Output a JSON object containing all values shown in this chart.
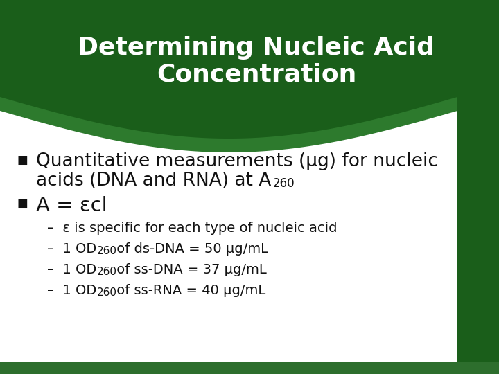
{
  "title_line1": "Determining Nucleic Acid",
  "title_line2": "Concentration",
  "title_color": "#ffffff",
  "title_fontsize": 26,
  "bg_color": "#ffffff",
  "header_green_dark": "#1a5e1a",
  "header_green_mid": "#2d7a2d",
  "header_green_light": "#3a9a3a",
  "bottom_strip_color": "#2d6e2d",
  "bullet1_line1": "Quantitative measurements (μg) for nucleic",
  "bullet1_line2": "acids (DNA and RNA) at A",
  "bullet1_sub": "260",
  "bullet2": "A = εcl",
  "sub_bullet1": "ε is specific for each type of nucleic acid",
  "sub_bullet2_pre": "1 OD",
  "sub_bullet2_sub": "260",
  "sub_bullet2_post": " of ds-DNA = 50 μg/mL",
  "sub_bullet3_pre": "1 OD",
  "sub_bullet3_sub": "260",
  "sub_bullet3_post": " of ss-DNA = 37 μg/mL",
  "sub_bullet4_pre": "1 OD",
  "sub_bullet4_sub": "260",
  "sub_bullet4_post": " of ss-RNA = 40 μg/mL",
  "text_color": "#111111",
  "sub_bullet_fontsize": 14,
  "bullet_fontsize": 19,
  "bullet2_fontsize": 21
}
